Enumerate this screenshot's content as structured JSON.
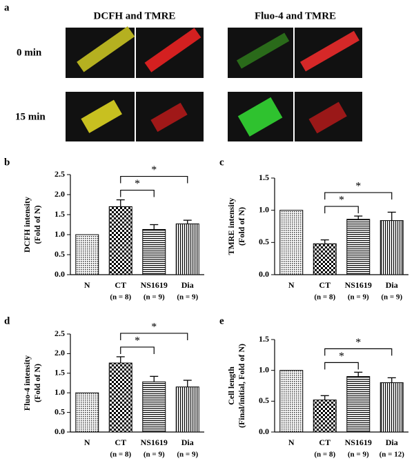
{
  "image_panel": {
    "label": "a",
    "columns": [
      "DCFH and TMRE",
      "Fluo-4 and TMRE"
    ],
    "rows": [
      "0 min",
      "15 min"
    ]
  },
  "chart_data": [
    {
      "type": "bar",
      "panel": "b",
      "ylabel": [
        "DCFH intensity",
        "(Fold of N)"
      ],
      "categories": [
        "N",
        "CT",
        "NS1619",
        "Dia"
      ],
      "sublabels": [
        null,
        "(n = 8)",
        "(n = 9)",
        "(n = 9)"
      ],
      "values": [
        1.0,
        1.7,
        1.13,
        1.27
      ],
      "errors": [
        null,
        0.17,
        0.12,
        0.09
      ],
      "patterns": [
        "dots",
        "checker",
        "hlines",
        "vlines"
      ],
      "ylim": [
        0,
        2.5
      ],
      "yticks": [
        {
          "value": 0,
          "label": "0.0"
        },
        {
          "value": 0.5,
          "label": "0.5"
        },
        {
          "value": 1,
          "label": "1.0"
        },
        {
          "value": 1.5,
          "label": "1.5"
        },
        {
          "value": 2,
          "label": "2.0"
        },
        {
          "value": 2.5,
          "label": "2.5"
        }
      ],
      "brackets": [
        {
          "from": "CT",
          "to": "NS1619",
          "label": "*"
        },
        {
          "from": "CT",
          "to": "Dia",
          "label": "*"
        }
      ]
    },
    {
      "type": "bar",
      "panel": "c",
      "ylabel": [
        "TMRE intensity",
        "(Fold of N)"
      ],
      "categories": [
        "N",
        "CT",
        "NS1619",
        "Dia"
      ],
      "sublabels": [
        null,
        "(n = 8)",
        "(n = 9)",
        "(n = 9)"
      ],
      "values": [
        1.0,
        0.48,
        0.86,
        0.84
      ],
      "errors": [
        null,
        0.06,
        0.05,
        0.13
      ],
      "patterns": [
        "dots",
        "checker",
        "hlines",
        "vlines"
      ],
      "ylim": [
        0,
        1.5
      ],
      "yticks": [
        {
          "value": 0,
          "label": "0.0"
        },
        {
          "value": 0.5,
          "label": "0.5"
        },
        {
          "value": 1,
          "label": "1.0"
        },
        {
          "value": 1.5,
          "label": "1.5"
        }
      ],
      "brackets": [
        {
          "from": "CT",
          "to": "NS1619",
          "label": "*"
        },
        {
          "from": "CT",
          "to": "Dia",
          "label": "*"
        }
      ]
    },
    {
      "type": "bar",
      "panel": "d",
      "ylabel": [
        "Fluo-4 intensity",
        "(Fold of N)"
      ],
      "categories": [
        "N",
        "CT",
        "NS1619",
        "Dia"
      ],
      "sublabels": [
        null,
        "(n = 8)",
        "(n = 9)",
        "(n = 9)"
      ],
      "values": [
        1.0,
        1.76,
        1.28,
        1.15
      ],
      "errors": [
        null,
        0.16,
        0.14,
        0.17
      ],
      "patterns": [
        "dots",
        "checker",
        "hlines",
        "vlines"
      ],
      "ylim": [
        0,
        2.5
      ],
      "yticks": [
        {
          "value": 0,
          "label": "0.0"
        },
        {
          "value": 0.5,
          "label": "0.5"
        },
        {
          "value": 1,
          "label": "1.0"
        },
        {
          "value": 1.5,
          "label": "1.5"
        },
        {
          "value": 2,
          "label": "2.0"
        },
        {
          "value": 2.5,
          "label": "2.5"
        }
      ],
      "brackets": [
        {
          "from": "CT",
          "to": "NS1619",
          "label": "*"
        },
        {
          "from": "CT",
          "to": "Dia",
          "label": "*"
        }
      ]
    },
    {
      "type": "bar",
      "panel": "e",
      "ylabel": [
        "Cell length",
        "(Final/initial, Fold of N)"
      ],
      "categories": [
        "N",
        "CT",
        "NS1619",
        "Dia"
      ],
      "sublabels": [
        null,
        "(n = 8)",
        "(n = 9)",
        "(n = 12)"
      ],
      "values": [
        1.0,
        0.52,
        0.9,
        0.8
      ],
      "errors": [
        null,
        0.07,
        0.07,
        0.08
      ],
      "patterns": [
        "dots",
        "checker",
        "hlines",
        "vlines"
      ],
      "ylim": [
        0,
        1.5
      ],
      "yticks": [
        {
          "value": 0,
          "label": "0.0"
        },
        {
          "value": 0.5,
          "label": "0.5"
        },
        {
          "value": 1,
          "label": "1.0"
        },
        {
          "value": 1.5,
          "label": "1.5"
        }
      ],
      "brackets": [
        {
          "from": "CT",
          "to": "NS1619",
          "label": "*"
        },
        {
          "from": "CT",
          "to": "Dia",
          "label": "*"
        }
      ]
    }
  ]
}
